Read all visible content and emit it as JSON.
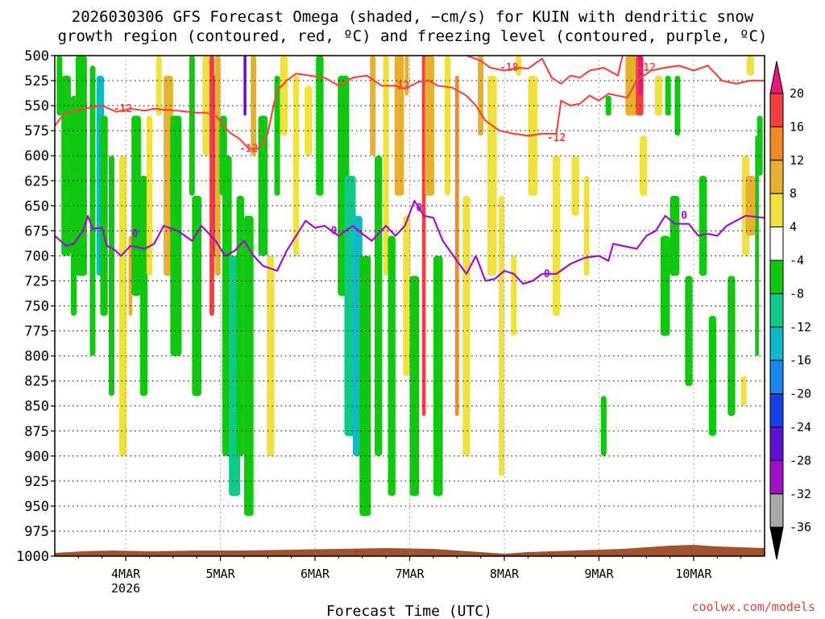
{
  "title_line1": "2026030306 GFS Forecast Omega (shaded, −cm/s) for KUIN with dendritic snow",
  "title_line2": "growth region (contoured, red, ºC) and freezing level (contoured, purple, ºC)",
  "credit": "coolwx.com/models",
  "credit_color": "#e0403a",
  "chart_data": {
    "type": "heatmap",
    "xlabel": "Forecast Time (UTC)",
    "x_ticks": [
      {
        "label": "4MAR",
        "sub": "2026",
        "t": 0.75
      },
      {
        "label": "5MAR",
        "sub": "",
        "t": 1.75
      },
      {
        "label": "6MAR",
        "sub": "",
        "t": 2.75
      },
      {
        "label": "7MAR",
        "sub": "",
        "t": 3.75
      },
      {
        "label": "8MAR",
        "sub": "",
        "t": 4.75
      },
      {
        "label": "9MAR",
        "sub": "",
        "t": 5.75
      },
      {
        "label": "10MAR",
        "sub": "",
        "t": 6.75
      }
    ],
    "xlim_days": [
      0,
      7.5
    ],
    "y_levels_hpa": [
      500,
      525,
      550,
      575,
      600,
      625,
      650,
      675,
      700,
      725,
      750,
      775,
      800,
      825,
      850,
      875,
      900,
      925,
      950,
      975,
      1000
    ],
    "ylim_hpa": [
      500,
      1000
    ],
    "grid": true,
    "colorbar": {
      "ticks": [
        "20",
        "16",
        "12",
        "8",
        "4",
        "-4",
        "-8",
        "-12",
        "-16",
        "-20",
        "-24",
        "-28",
        "-32",
        "-36"
      ],
      "colors": [
        "#e8187a",
        "#f04040",
        "#f08a28",
        "#e8b030",
        "#f0e040",
        "#ffffff",
        "#10c810",
        "#10c888",
        "#10b8c8",
        "#1888f0",
        "#1840e8",
        "#6010d0",
        "#a010c8",
        "#a8a8a8",
        "#000000"
      ]
    },
    "contours": {
      "dgz_color": "#f04840",
      "freezing_color": "#a010c8",
      "dgz_top_label": "-18",
      "dgz_label": "-12",
      "freezing_label": "0",
      "freezing_level_hpa": [
        [
          0,
          680
        ],
        [
          0.12,
          690
        ],
        [
          0.2,
          688
        ],
        [
          0.3,
          675
        ],
        [
          0.35,
          660
        ],
        [
          0.4,
          673
        ],
        [
          0.5,
          672
        ],
        [
          0.55,
          690
        ],
        [
          0.62,
          693
        ],
        [
          0.7,
          700
        ],
        [
          0.8,
          690
        ],
        [
          0.95,
          693
        ],
        [
          1.05,
          688
        ],
        [
          1.15,
          670
        ],
        [
          1.3,
          675
        ],
        [
          1.45,
          685
        ],
        [
          1.55,
          670
        ],
        [
          1.7,
          685
        ],
        [
          1.8,
          700
        ],
        [
          1.9,
          695
        ],
        [
          2.0,
          685
        ],
        [
          2.1,
          700
        ],
        [
          2.2,
          710
        ],
        [
          2.35,
          715
        ],
        [
          2.45,
          695
        ],
        [
          2.55,
          680
        ],
        [
          2.65,
          665
        ],
        [
          2.75,
          672
        ],
        [
          2.85,
          670
        ],
        [
          3.0,
          680
        ],
        [
          3.15,
          670
        ],
        [
          3.25,
          678
        ],
        [
          3.35,
          685
        ],
        [
          3.5,
          670
        ],
        [
          3.6,
          680
        ],
        [
          3.7,
          670
        ],
        [
          3.8,
          645
        ],
        [
          3.9,
          660
        ],
        [
          4.0,
          662
        ],
        [
          4.1,
          685
        ],
        [
          4.25,
          705
        ],
        [
          4.35,
          718
        ],
        [
          4.45,
          700
        ],
        [
          4.55,
          725
        ],
        [
          4.65,
          723
        ],
        [
          4.75,
          715
        ],
        [
          4.85,
          718
        ],
        [
          4.95,
          728
        ],
        [
          5.05,
          725
        ],
        [
          5.15,
          718
        ],
        [
          5.3,
          718
        ],
        [
          5.45,
          708
        ],
        [
          5.6,
          702
        ],
        [
          5.75,
          700
        ],
        [
          5.85,
          705
        ],
        [
          5.9,
          688
        ],
        [
          6.0,
          690
        ],
        [
          6.15,
          693
        ],
        [
          6.25,
          680
        ],
        [
          6.35,
          675
        ],
        [
          6.45,
          660
        ],
        [
          6.55,
          668
        ],
        [
          6.7,
          668
        ],
        [
          6.8,
          680
        ],
        [
          6.9,
          678
        ],
        [
          7.0,
          680
        ],
        [
          7.1,
          670
        ],
        [
          7.3,
          660
        ],
        [
          7.5,
          662
        ]
      ],
      "dgz_minus12_hpa": [
        [
          0,
          570
        ],
        [
          0.1,
          558
        ],
        [
          0.3,
          553
        ],
        [
          0.5,
          550
        ],
        [
          0.65,
          556
        ],
        [
          0.8,
          553
        ],
        [
          0.95,
          555
        ],
        [
          1.05,
          553
        ],
        [
          1.15,
          554
        ],
        [
          1.3,
          555
        ],
        [
          1.5,
          557
        ],
        [
          1.6,
          557
        ],
        [
          1.7,
          560
        ],
        [
          1.85,
          577
        ],
        [
          1.95,
          583
        ],
        [
          2.05,
          593
        ],
        [
          2.15,
          593
        ],
        [
          2.25,
          578
        ],
        [
          2.3,
          555
        ],
        [
          2.35,
          535
        ],
        [
          2.45,
          525
        ],
        [
          2.55,
          518
        ],
        [
          2.7,
          520
        ],
        [
          2.85,
          522
        ],
        [
          3.0,
          530
        ],
        [
          3.15,
          522
        ],
        [
          3.3,
          520
        ],
        [
          3.45,
          530
        ],
        [
          3.6,
          530
        ],
        [
          3.7,
          533
        ],
        [
          3.85,
          526
        ],
        [
          3.95,
          525
        ],
        [
          4.05,
          530
        ],
        [
          4.2,
          532
        ],
        [
          4.35,
          540
        ],
        [
          4.45,
          550
        ],
        [
          4.55,
          565
        ],
        [
          4.7,
          575
        ],
        [
          4.85,
          578
        ],
        [
          5.0,
          580
        ],
        [
          5.15,
          578
        ],
        [
          5.3,
          578
        ],
        [
          5.35,
          545
        ],
        [
          5.45,
          550
        ],
        [
          5.55,
          548
        ],
        [
          5.65,
          540
        ],
        [
          5.75,
          545
        ],
        [
          5.85,
          538
        ],
        [
          5.95,
          540
        ],
        [
          6.05,
          542
        ],
        [
          6.15,
          525
        ],
        [
          6.3,
          515
        ],
        [
          6.45,
          512
        ],
        [
          6.6,
          510
        ],
        [
          6.75,
          515
        ],
        [
          6.9,
          510
        ],
        [
          7.05,
          525
        ],
        [
          7.2,
          528
        ],
        [
          7.35,
          525
        ],
        [
          7.5,
          525
        ]
      ],
      "dgz_minus18_hpa": [
        [
          4.35,
          500
        ],
        [
          4.5,
          505
        ],
        [
          4.6,
          512
        ],
        [
          4.75,
          515
        ],
        [
          4.9,
          512
        ],
        [
          5.0,
          513
        ],
        [
          5.15,
          503
        ],
        [
          5.25,
          522
        ],
        [
          5.35,
          528
        ],
        [
          5.45,
          520
        ],
        [
          5.55,
          522
        ],
        [
          5.65,
          515
        ],
        [
          5.8,
          512
        ],
        [
          5.95,
          520
        ],
        [
          6.0,
          500
        ]
      ]
    }
  }
}
